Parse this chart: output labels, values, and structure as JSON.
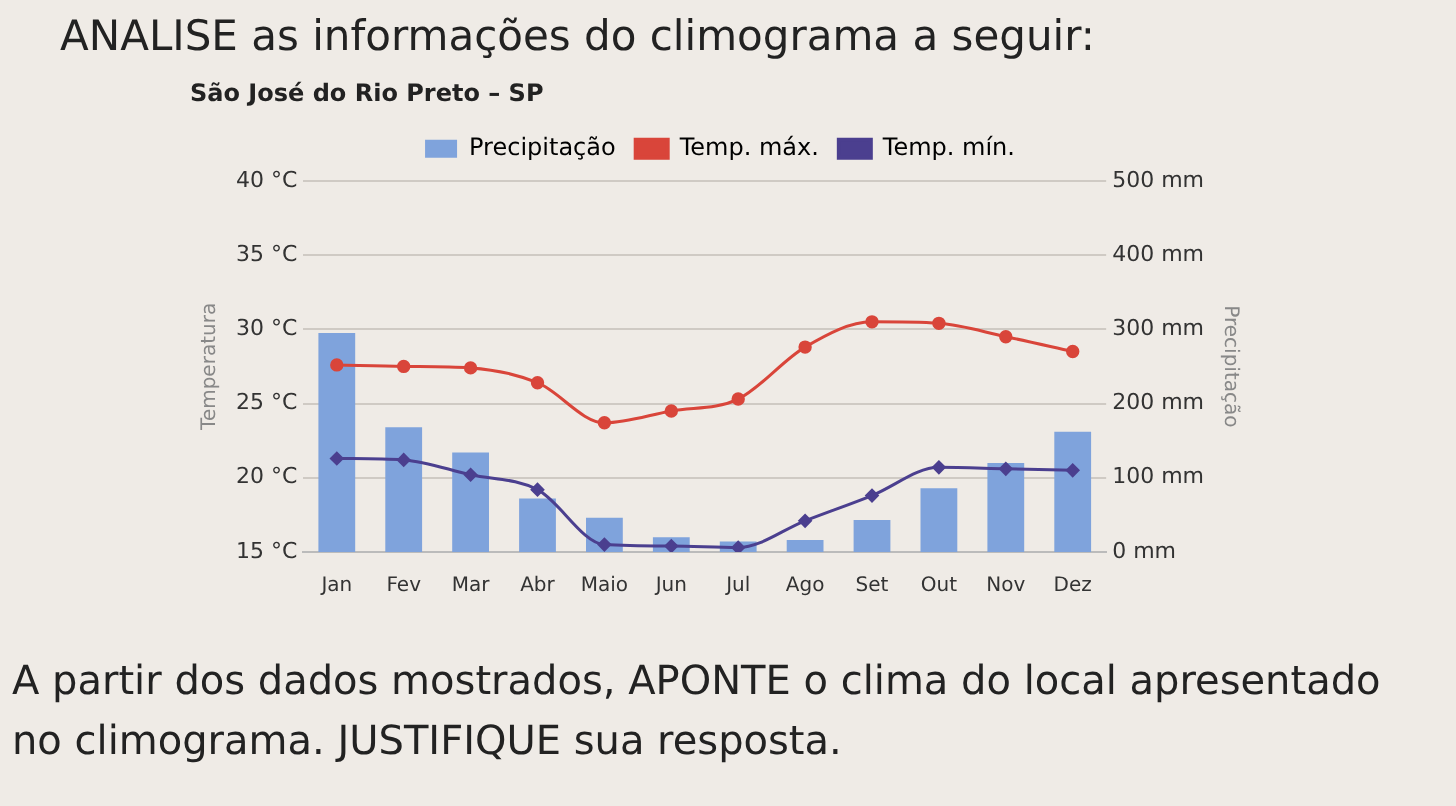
{
  "chart_data": {
    "type": "bar",
    "title": "São José do Rio Preto – SP",
    "xlabel": null,
    "ylabel": "Temperatura",
    "y2label": "Precipitação",
    "annotations": [
      "ANALISE as informações do climograma a seguir:",
      "A partir dos dados mostrados, APONTE o clima do local apresentado no climograma. JUSTIFIQUE sua resposta."
    ],
    "categories": [
      "Jan",
      "Fev",
      "Mar",
      "Abr",
      "Maio",
      "Jun",
      "Jul",
      "Ago",
      "Set",
      "Out",
      "Nov",
      "Dez"
    ],
    "series": [
      {
        "name": "Precipitação",
        "axis": "y2",
        "color": "#7fa3dc",
        "values": [
          295,
          168,
          134,
          72,
          46,
          20,
          14,
          16,
          43,
          86,
          120,
          162
        ]
      },
      {
        "name": "Temp. máx.",
        "type": "line",
        "color": "#d9453a",
        "marker": "circle",
        "values": [
          27.6,
          27.5,
          27.4,
          26.4,
          23.7,
          24.5,
          25.3,
          28.8,
          30.5,
          30.4,
          29.5,
          28.5
        ]
      },
      {
        "name": "Temp. mín.",
        "type": "line",
        "color": "#4b3f8f",
        "marker": "diamond",
        "values": [
          21.3,
          21.2,
          20.2,
          19.2,
          15.5,
          15.4,
          15.3,
          17.1,
          18.8,
          20.7,
          20.6,
          20.5
        ]
      }
    ],
    "ylim": [
      15,
      40
    ],
    "yticks": [
      {
        "value": 15,
        "label": "15 °C"
      },
      {
        "value": 20,
        "label": "20 °C"
      },
      {
        "value": 25,
        "label": "25 °C"
      },
      {
        "value": 30,
        "label": "30 °C"
      },
      {
        "value": 35,
        "label": "35 °C"
      },
      {
        "value": 40,
        "label": "40 °C"
      }
    ],
    "y2lim": [
      0,
      500
    ],
    "y2ticks": [
      {
        "value": 0,
        "label": "0 mm"
      },
      {
        "value": 100,
        "label": "100 mm"
      },
      {
        "value": 200,
        "label": "200 mm"
      },
      {
        "value": 300,
        "label": "300 mm"
      },
      {
        "value": 400,
        "label": "400 mm"
      },
      {
        "value": 500,
        "label": "500 mm"
      }
    ],
    "grid": "y",
    "legend": "top"
  }
}
